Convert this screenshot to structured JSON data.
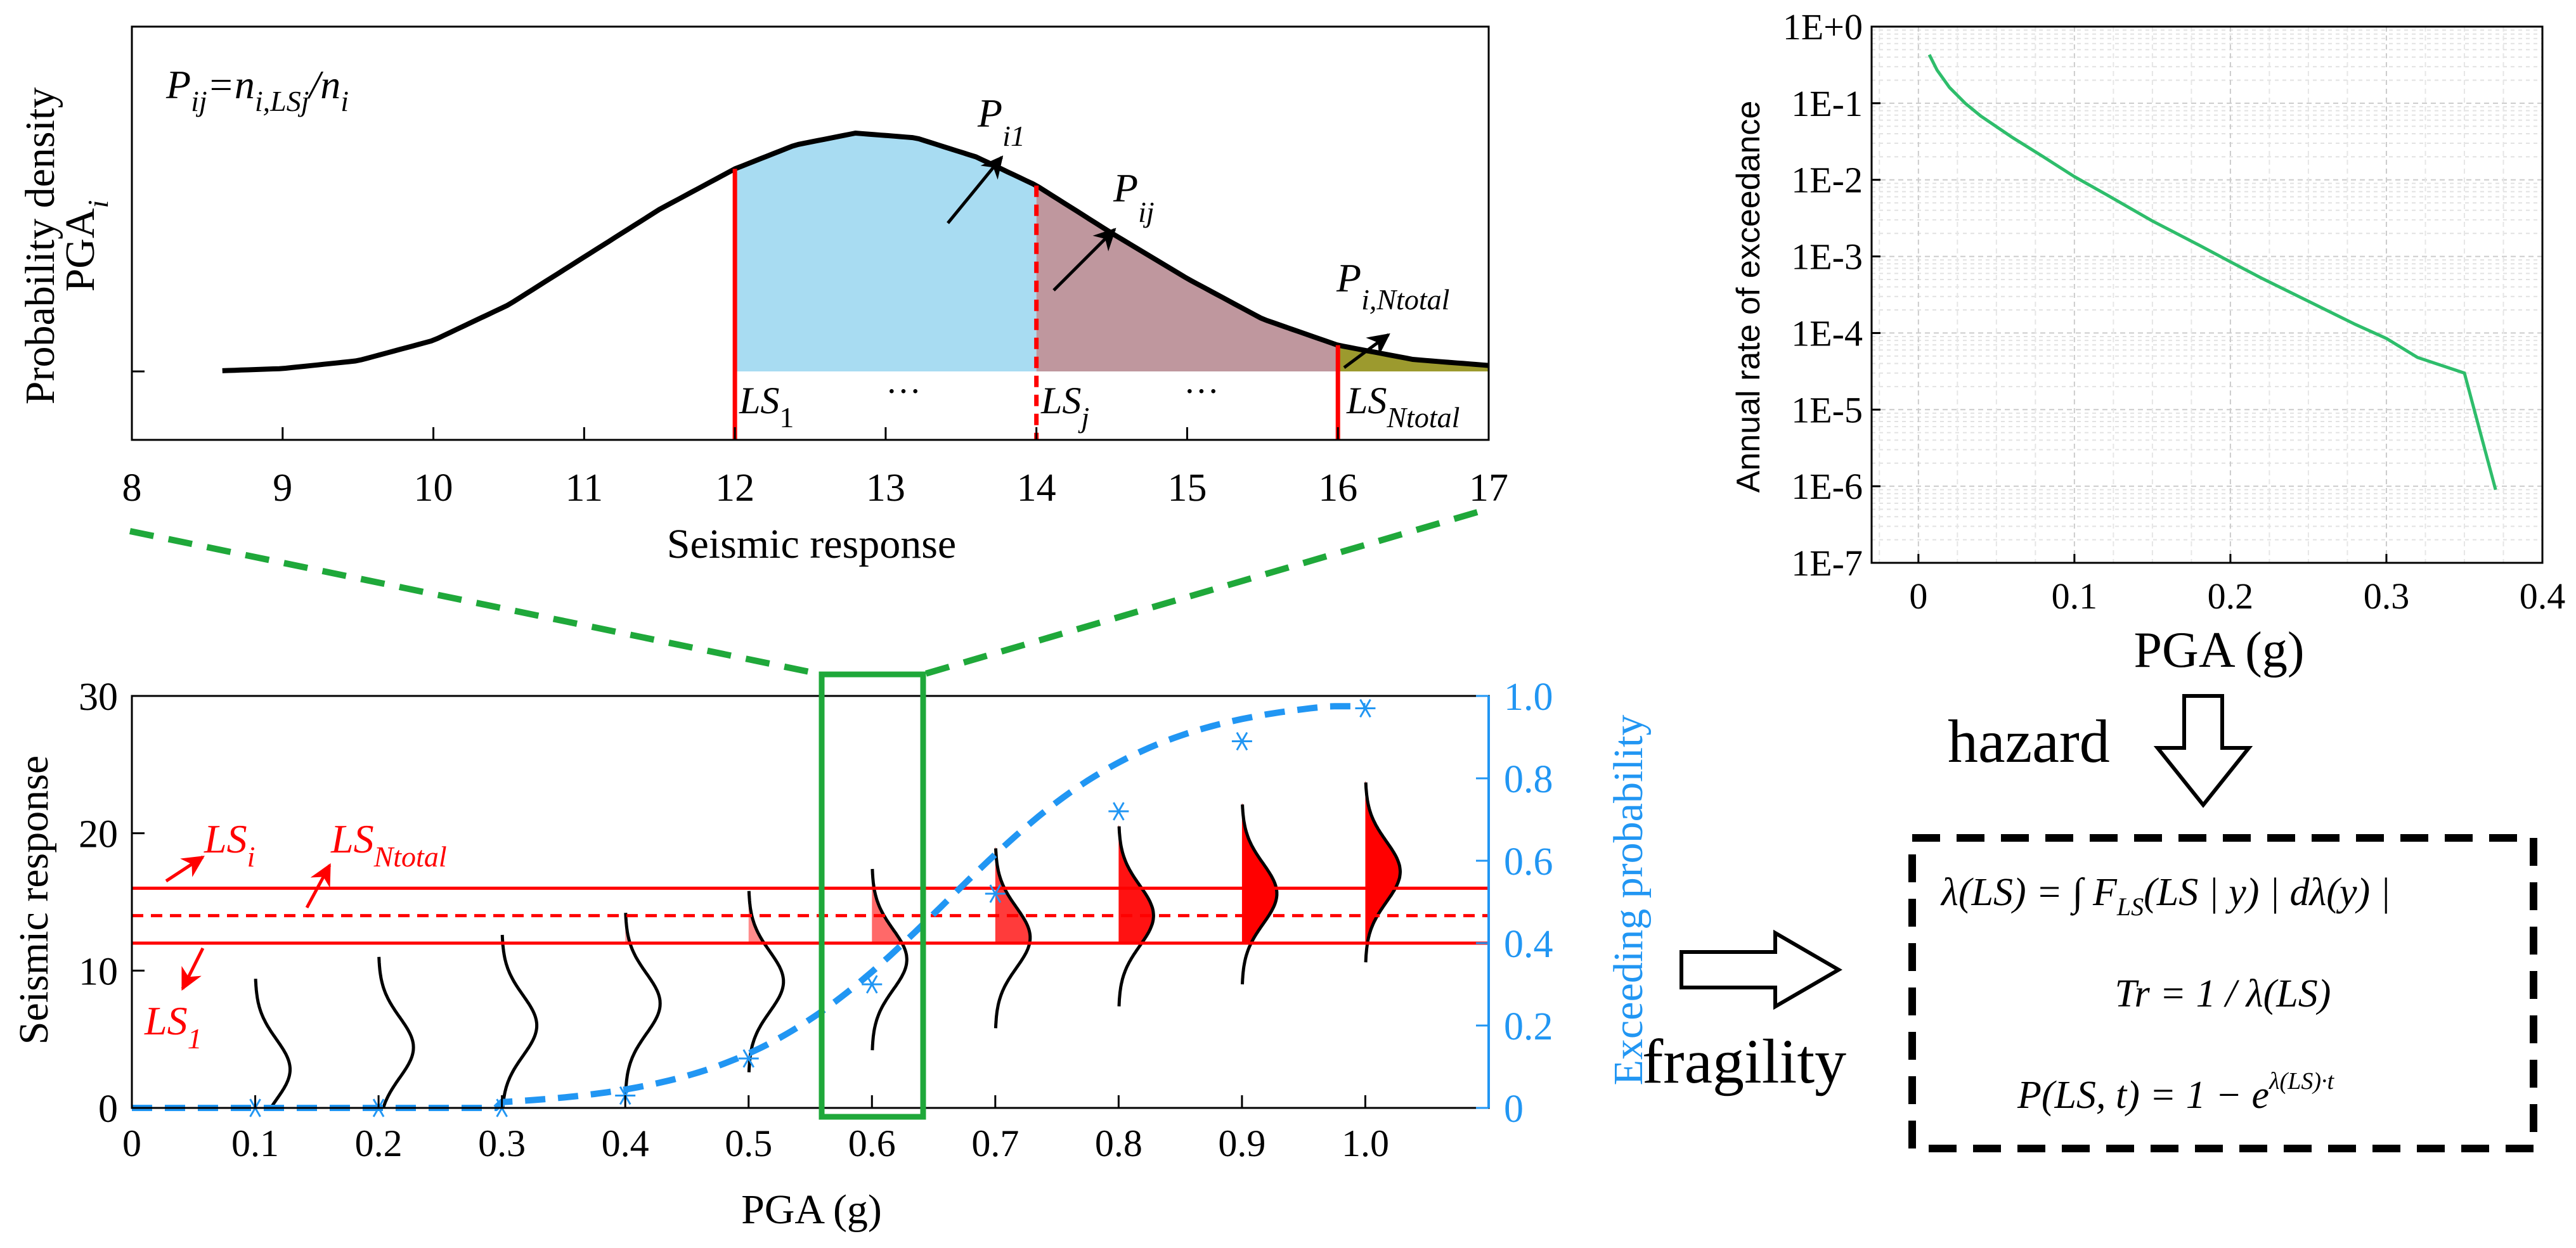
{
  "density_panel": {
    "ylabel_1": "Probability density",
    "ylabel_2": "PGA",
    "ylabel_2_sub": "i",
    "xlabel": "Seismic response",
    "formula": {
      "P": "P",
      "ij": "ij",
      "eq": "=n",
      "sub1": "i,LSj",
      "slash": "/n",
      "sub2": "i"
    },
    "labels": {
      "pi1_P": "P",
      "pi1_sub": "i1",
      "pij_P": "P",
      "pij_sub": "ij",
      "pin_P": "P",
      "pin_sub": "i,Ntotal",
      "ls1": "LS",
      "ls1_sub": "1",
      "lsj": "LS",
      "lsj_sub": "j",
      "lsn": "LS",
      "lsn_sub": "Ntotal",
      "dots1": "···",
      "dots2": "···"
    },
    "x_ticks": [
      "8",
      "9",
      "10",
      "11",
      "12",
      "13",
      "14",
      "15",
      "16",
      "17"
    ],
    "colors": {
      "region1": "#a8dcf2",
      "region2": "#bf979e",
      "region3": "#9c9a2e",
      "curve": "#000000",
      "limit": "#ff0000"
    }
  },
  "hazard_panel": {
    "ylabel": "Annual rate of exceedance",
    "xlabel": "PGA (g)",
    "y_ticks": [
      "1E+0",
      "1E-1",
      "1E-2",
      "1E-3",
      "1E-4",
      "1E-5",
      "1E-6",
      "1E-7"
    ],
    "x_ticks": [
      "0",
      "0.1",
      "0.2",
      "0.3",
      "0.4"
    ],
    "line_color": "#2ebd6b"
  },
  "fragility_panel": {
    "ylabel_left": "Seismic response",
    "ylabel_right": "Exceeding probability",
    "xlabel": "PGA (g)",
    "y_left_ticks": [
      "0",
      "10",
      "20",
      "30"
    ],
    "y_right_ticks": [
      "0",
      "0.2",
      "0.4",
      "0.6",
      "0.8",
      "1.0"
    ],
    "x_ticks": [
      "0",
      "0.1",
      "0.2",
      "0.3",
      "0.4",
      "0.5",
      "0.6",
      "0.7",
      "0.8",
      "0.9",
      "1.0"
    ],
    "labels": {
      "lsi": "LS",
      "lsi_sub": "i",
      "lsn": "LS",
      "lsn_sub": "Ntotal",
      "ls1": "LS",
      "ls1_sub": "1"
    },
    "curve_color": "#2196f3",
    "limit_color": "#ff0000",
    "box_color": "#1fa83a"
  },
  "flow": {
    "hazard": "hazard",
    "fragility": "fragility"
  },
  "equations": {
    "eq1": "λ(LS) = ∫ F",
    "eq1_sub": "LS",
    "eq1_rest": "(LS | y) | dλ(y) |",
    "eq2": "Tr = 1 / λ(LS)",
    "eq3": "P(LS, t) = 1 − e",
    "eq3_sup": "λ(LS)·t"
  },
  "chart_data": [
    {
      "type": "line",
      "x": [
        8.6,
        9,
        9.5,
        10,
        10.5,
        11,
        11.5,
        12,
        12.4,
        12.8,
        13.2,
        13.6,
        14,
        14.5,
        15,
        15.5,
        16,
        16.5,
        17
      ],
      "series": [
        {
          "values": [
            0.3,
            1.2,
            4.5,
            13,
            28,
            48,
            68,
            85,
            95,
            100,
            98,
            90,
            78,
            58,
            39,
            22,
            11,
            5,
            2.5
          ]
        }
      ],
      "xlabel": "Seismic response",
      "ylabel": "Probability density PGAi",
      "xlim": [
        8,
        17
      ],
      "limit_states": [
        12,
        14,
        16
      ]
    },
    {
      "type": "line",
      "x": [
        0.007,
        0.012,
        0.02,
        0.03,
        0.04,
        0.06,
        0.08,
        0.1,
        0.12,
        0.15,
        0.18,
        0.2,
        0.22,
        0.25,
        0.28,
        0.3,
        0.32,
        0.35,
        0.37
      ],
      "series": [
        {
          "values": [
            0.43,
            0.27,
            0.16,
            0.1,
            0.068,
            0.036,
            0.02,
            0.011,
            0.0065,
            0.0029,
            0.0014,
            0.00085,
            0.00052,
            0.00026,
            0.00013,
            8.5e-05,
            4.8e-05,
            3e-05,
            9e-07
          ]
        }
      ],
      "xlabel": "PGA (g)",
      "ylabel": "Annual rate of exceedance",
      "xlim": [
        -0.03,
        0.4
      ],
      "ylim": [
        1e-07,
        1
      ],
      "yscale": "log",
      "grid": true
    },
    {
      "type": "line",
      "x": [
        0,
        0.1,
        0.2,
        0.3,
        0.4,
        0.5,
        0.6,
        0.7,
        0.8,
        0.9,
        1.0
      ],
      "series": [
        {
          "name": "Exceeding probability",
          "values": [
            0,
            0,
            0,
            0,
            0.03,
            0.12,
            0.3,
            0.52,
            0.72,
            0.89,
            0.97
          ]
        }
      ],
      "xlabel": "PGA (g)",
      "ylabel": "Exceeding probability",
      "xlim": [
        0,
        1.1
      ],
      "ylim": [
        0,
        1
      ],
      "limit_states_response": [
        12,
        14,
        16
      ],
      "ylim_left": [
        0,
        30
      ]
    }
  ]
}
